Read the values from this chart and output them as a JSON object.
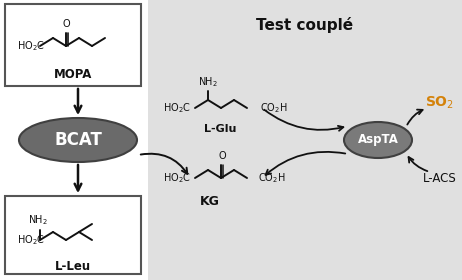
{
  "title": "Test couplé",
  "bg_color": "#e0e0e0",
  "white": "#ffffff",
  "dark_gray": "#555555",
  "black": "#111111",
  "orange": "#d4820a",
  "bcat_color": "#6a6a6a",
  "aspta_color": "#7a7a7a",
  "bcat_label": "BCAT",
  "aspta_label": "AspTA",
  "mopa_label": "MOPA",
  "lglu_label": "L-Glu",
  "kg_label": "KG",
  "lleu_label": "L-Leu",
  "lacs_label": "L-ACS"
}
